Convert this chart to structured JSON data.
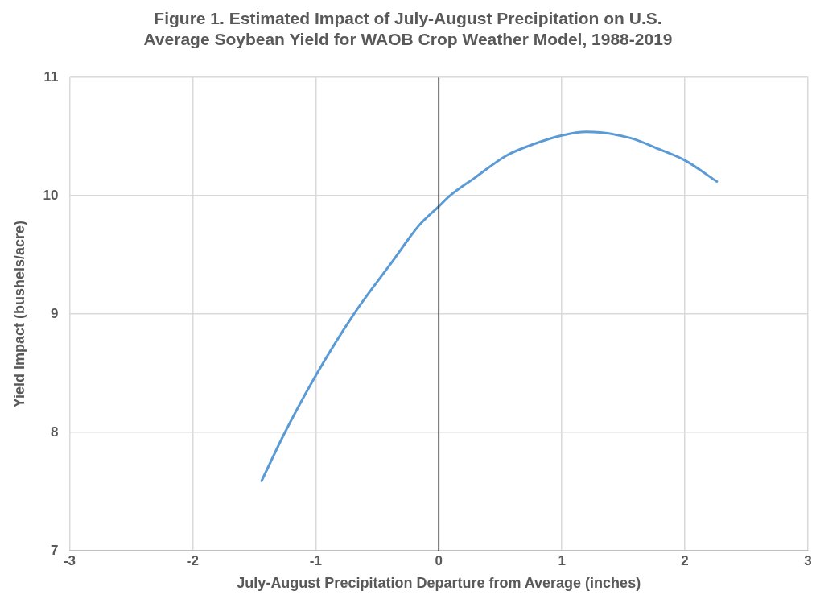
{
  "chart_data": {
    "type": "line",
    "title": "Figure 1. Estimated Impact of July-August Precipitation on U.S. Average Soybean Yield for WAOB Crop Weather Model, 1988-2019",
    "xlabel": "July-August Precipitation Departure from Average (inches)",
    "ylabel": "Yield Impact (bushels/acre)",
    "x": [
      -1.44,
      -1.25,
      -1.0,
      -0.69,
      -0.38,
      -0.16,
      0,
      0.09,
      0.29,
      0.55,
      0.78,
      1.0,
      1.2,
      1.55,
      1.8,
      2.0,
      2.26
    ],
    "series": [
      {
        "color": "#5b9bd5",
        "values": [
          7.59,
          8.0,
          8.48,
          9.0,
          9.44,
          9.75,
          9.91,
          10.0,
          10.15,
          10.34,
          10.44,
          10.51,
          10.54,
          10.49,
          10.39,
          10.3,
          10.12
        ]
      }
    ],
    "xlim": [
      -3,
      3
    ],
    "xticks": [
      -3,
      -2,
      -1,
      0,
      1,
      2,
      3
    ],
    "ylim": [
      7,
      11
    ],
    "yticks": [
      7,
      8,
      9,
      10,
      11
    ],
    "ref_lines": [
      {
        "axis": "x",
        "value": 0,
        "color": "#000000"
      }
    ],
    "grid": true,
    "legend": false,
    "marker": "none",
    "line_style": "solid"
  }
}
